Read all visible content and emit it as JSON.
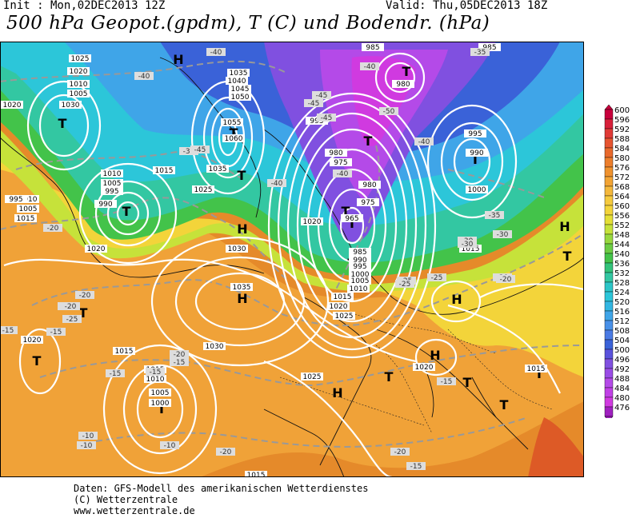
{
  "header": {
    "init": "Init : Mon,02DEC2013 12Z",
    "valid": "Valid: Thu,05DEC2013 18Z",
    "title": "500 hPa Geopot.(gpdm), T (C) und Bodendr. (hPa)"
  },
  "footer": {
    "line1": "Daten: GFS-Modell des amerikanischen Wetterdienstes",
    "line2": "(C) Wetterzentrale",
    "line3": "www.wetterzentrale.de"
  },
  "colors": {
    "ocean_bg": "#e58a2a",
    "warm_orange": "#f0a238",
    "yellow": "#f3d43a",
    "yellow_green": "#c6e23a",
    "green": "#43c34a",
    "teal": "#33c7a2",
    "cyan": "#2cc6d9",
    "light_blue": "#3fa5e8",
    "blue": "#3a62d8",
    "violet": "#8050e0",
    "purple": "#b44ae8",
    "magenta": "#d03ae0",
    "isobar": "#ffffff",
    "isotherm": "#999999"
  },
  "legend": {
    "values": [
      "600",
      "596",
      "592",
      "588",
      "584",
      "580",
      "576",
      "572",
      "568",
      "564",
      "560",
      "556",
      "552",
      "548",
      "544",
      "540",
      "536",
      "532",
      "528",
      "524",
      "520",
      "516",
      "512",
      "508",
      "504",
      "500",
      "496",
      "492",
      "488",
      "484",
      "480",
      "476"
    ],
    "colors": [
      "#c8003c",
      "#d8203a",
      "#e03a36",
      "#e65430",
      "#e8692c",
      "#ec7e2c",
      "#ef922e",
      "#f2a434",
      "#f4b83c",
      "#f5ca3e",
      "#f3d43a",
      "#e4df36",
      "#c6e23a",
      "#98d83e",
      "#6ccc44",
      "#43c34a",
      "#33c37a",
      "#33c7a2",
      "#2cc6c8",
      "#2cc6d9",
      "#32b6e2",
      "#3fa5e8",
      "#4890e8",
      "#4a7ae4",
      "#3a62d8",
      "#5a52dc",
      "#8050e0",
      "#9a4ce6",
      "#b44ae8",
      "#c040e6",
      "#d03ae0",
      "#a020c0"
    ]
  },
  "map": {
    "pressure_centers": [
      {
        "symbol": "T",
        "type": "low"
      },
      {
        "symbol": "T",
        "type": "low"
      },
      {
        "symbol": "T",
        "type": "low"
      },
      {
        "symbol": "T",
        "type": "low"
      },
      {
        "symbol": "T",
        "type": "low"
      },
      {
        "symbol": "T",
        "type": "low"
      },
      {
        "symbol": "T",
        "type": "low"
      },
      {
        "symbol": "T",
        "type": "low"
      },
      {
        "symbol": "T",
        "type": "low"
      },
      {
        "symbol": "T",
        "type": "low"
      },
      {
        "symbol": "T",
        "type": "low"
      },
      {
        "symbol": "T",
        "type": "low"
      },
      {
        "symbol": "T",
        "type": "low"
      },
      {
        "symbol": "T",
        "type": "low"
      },
      {
        "symbol": "T",
        "type": "low"
      },
      {
        "symbol": "T",
        "type": "low"
      },
      {
        "symbol": "T",
        "type": "low"
      },
      {
        "symbol": "T",
        "type": "low"
      },
      {
        "symbol": "H",
        "type": "high"
      },
      {
        "symbol": "H",
        "type": "high"
      },
      {
        "symbol": "H",
        "type": "high"
      },
      {
        "symbol": "H",
        "type": "high"
      },
      {
        "symbol": "H",
        "type": "high"
      },
      {
        "symbol": "H",
        "type": "high"
      },
      {
        "symbol": "H",
        "type": "high"
      }
    ],
    "isobar_labels": [
      "1025",
      "1020",
      "1010",
      "1005",
      "1030",
      "1020",
      "1015",
      "1010",
      "1005",
      "995",
      "990",
      "1010",
      "1005",
      "1035",
      "1040",
      "1045",
      "1050",
      "1055",
      "1060",
      "1035",
      "1025",
      "1030",
      "1035",
      "985",
      "980",
      "995",
      "980",
      "975",
      "980",
      "975",
      "965",
      "985",
      "990",
      "995",
      "1000",
      "1005",
      "1010",
      "1015",
      "1020",
      "1025",
      "1020",
      "995",
      "990",
      "1000",
      "985",
      "995",
      "1015",
      "1020",
      "1020",
      "1015",
      "1015",
      "1010",
      "1005",
      "1000",
      "1015",
      "1025",
      "1020",
      "1030",
      "1015",
      "1015"
    ],
    "isotherm_labels": [
      "-40",
      "-40",
      "-35",
      "-35",
      "-40",
      "-45",
      "-45",
      "-50",
      "-40",
      "-40",
      "-45",
      "-40",
      "-45",
      "-35",
      "-30",
      "-30",
      "-25",
      "-25",
      "-20",
      "-20",
      "-20",
      "-20",
      "-15",
      "-15",
      "-15",
      "-15",
      "-15",
      "-10",
      "-10",
      "-10",
      "-20",
      "-20",
      "-15",
      "-20",
      "-25",
      "-30",
      "-25",
      "-20",
      "-20",
      "-15"
    ]
  }
}
